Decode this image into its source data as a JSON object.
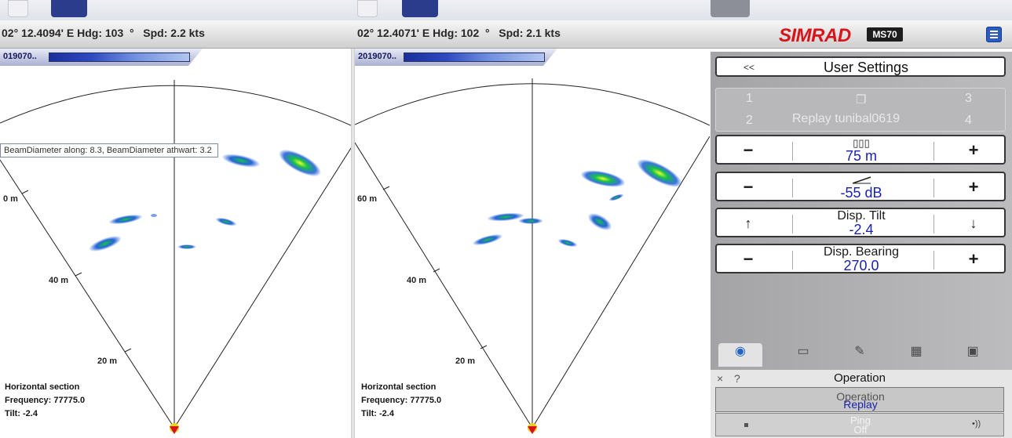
{
  "header": {
    "left_status": "02° 12.4094' E Hdg: 103  °   Spd: 2.2 kts",
    "right_status": "02° 12.4071' E Hdg: 102  °   Spd: 2.1 kts",
    "brand": "SIMRAD",
    "model_badge": "MS70",
    "menu_icon": "hamburger-menu-icon"
  },
  "left_view": {
    "file_label": "019070..",
    "tooltip": "BeamDiameter along: 8.3, BeamDiameter athwart: 3.2",
    "ranges": [
      "0 m",
      "40 m",
      "20 m"
    ],
    "section_title": "Horizontal section",
    "frequency": "Frequency: 77775.0",
    "tilt": "Tilt: -2.4"
  },
  "right_view": {
    "file_label": "2019070..",
    "ranges": [
      "60 m",
      "40 m",
      "20 m"
    ],
    "section_title": "Horizontal section",
    "frequency": "Frequency: 77775.0",
    "tilt": "Tilt: -2.4"
  },
  "controls": {
    "user_settings": {
      "back": "<<",
      "title": "User Settings"
    },
    "presets": {
      "p1": "1",
      "p2": "2",
      "p3": "3",
      "p4": "4",
      "replay": "Replay tunibal0619",
      "icon": "window-restore-icon"
    },
    "range": {
      "minus": "−",
      "plus": "+",
      "value": "75 m",
      "icon": "range-icon"
    },
    "gain": {
      "minus": "−",
      "plus": "+",
      "value": "-55  dB",
      "icon": "gain-ramp-icon"
    },
    "tilt": {
      "up": "↑",
      "down": "↓",
      "title": "Disp. Tilt",
      "value": "-2.4"
    },
    "bearing": {
      "minus": "−",
      "plus": "+",
      "title": "Disp. Bearing",
      "value": "270.0"
    },
    "tabs": [
      "sonar-icon",
      "monitor-icon",
      "wrench-icon",
      "layout-icon",
      "camera-icon"
    ],
    "operation": {
      "close": "×",
      "help": "?",
      "title": "Operation",
      "main_label": "Operation",
      "main_value": "Replay",
      "ping_label": "Ping",
      "ping_value": "Off"
    }
  },
  "colors": {
    "echo_strong": "#f0ff26",
    "echo_mid": "#14c24a",
    "echo_weak": "#2563d8",
    "logo": "#d8141b"
  }
}
